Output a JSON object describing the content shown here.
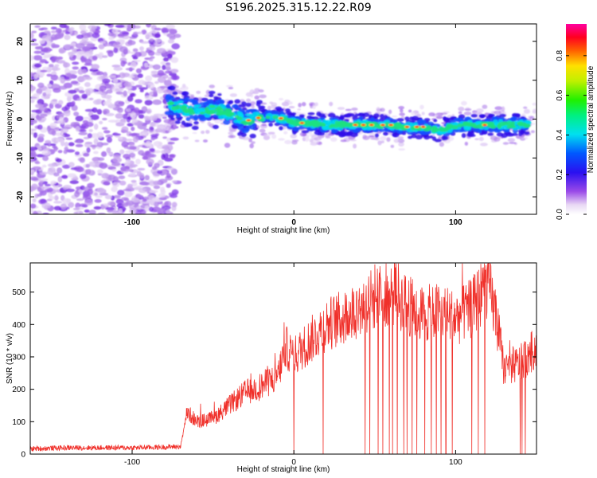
{
  "title": "S196.2025.315.12.22.R09",
  "colors": {
    "series": "#f0302a",
    "axis": "#000000",
    "background": "#ffffff"
  },
  "chart_data": [
    {
      "type": "heatmap",
      "xlabel": "Height of straight line (km)",
      "ylabel": "Frequency (Hz)",
      "xlim": [
        -163,
        150
      ],
      "ylim": [
        -24.5,
        24.5
      ],
      "xticks": [
        -100,
        0,
        100
      ],
      "yticks": [
        -20,
        -10,
        0,
        10,
        20
      ],
      "grid": false,
      "colorbar": {
        "label": "Normalized spectral amplitude",
        "range": [
          0,
          0.96
        ],
        "ticks": [
          "0.0",
          "0.2",
          "0.4",
          "0.6",
          "0.8"
        ],
        "colormap": "rainbow (purple-blue-cyan-green-yellow-red-magenta)"
      },
      "ridge": {
        "x": [
          -78,
          -70,
          -60,
          -50,
          -40,
          -30,
          -20,
          -10,
          0,
          10,
          20,
          30,
          40,
          50,
          60,
          70,
          80,
          90,
          100,
          110,
          120,
          130,
          145
        ],
        "frequency": [
          4,
          3,
          2,
          2.5,
          1.5,
          -0.5,
          0.5,
          0.5,
          -1,
          -1,
          -1.5,
          -1.5,
          -1.5,
          -1.5,
          -1.5,
          -2,
          -2,
          -3,
          -1.5,
          -1.5,
          -1.5,
          -1.5,
          -1.5
        ]
      },
      "noise_region_x": [
        -163,
        -78
      ]
    },
    {
      "type": "line",
      "xlabel": "Height of straight line (km)",
      "ylabel": "SNR (10 * v/v)",
      "xlim": [
        -163,
        150
      ],
      "ylim": [
        0,
        590
      ],
      "xticks": [
        -100,
        0,
        100
      ],
      "yticks": [
        0,
        100,
        200,
        300,
        400,
        500
      ],
      "grid": false,
      "series": [
        {
          "x": [
            -163,
            -140,
            -120,
            -100,
            -80,
            -70,
            -66,
            -60,
            -50,
            -40,
            -30,
            -20,
            -10,
            -5,
            0,
            10,
            20,
            30,
            40,
            50,
            60,
            70,
            80,
            90,
            100,
            110,
            120,
            125,
            130,
            140,
            150
          ],
          "values": [
            15,
            18,
            18,
            18,
            20,
            22,
            130,
            100,
            110,
            150,
            190,
            210,
            240,
            330,
            300,
            350,
            400,
            420,
            450,
            480,
            500,
            460,
            430,
            440,
            420,
            450,
            530,
            420,
            260,
            280,
            330
          ],
          "dropout_x": [
            0,
            18,
            44,
            47,
            52,
            55,
            59,
            61,
            64,
            68,
            70,
            73,
            76,
            81,
            85,
            88,
            91,
            94,
            98,
            110,
            114,
            118,
            140,
            141,
            143
          ]
        }
      ]
    }
  ]
}
